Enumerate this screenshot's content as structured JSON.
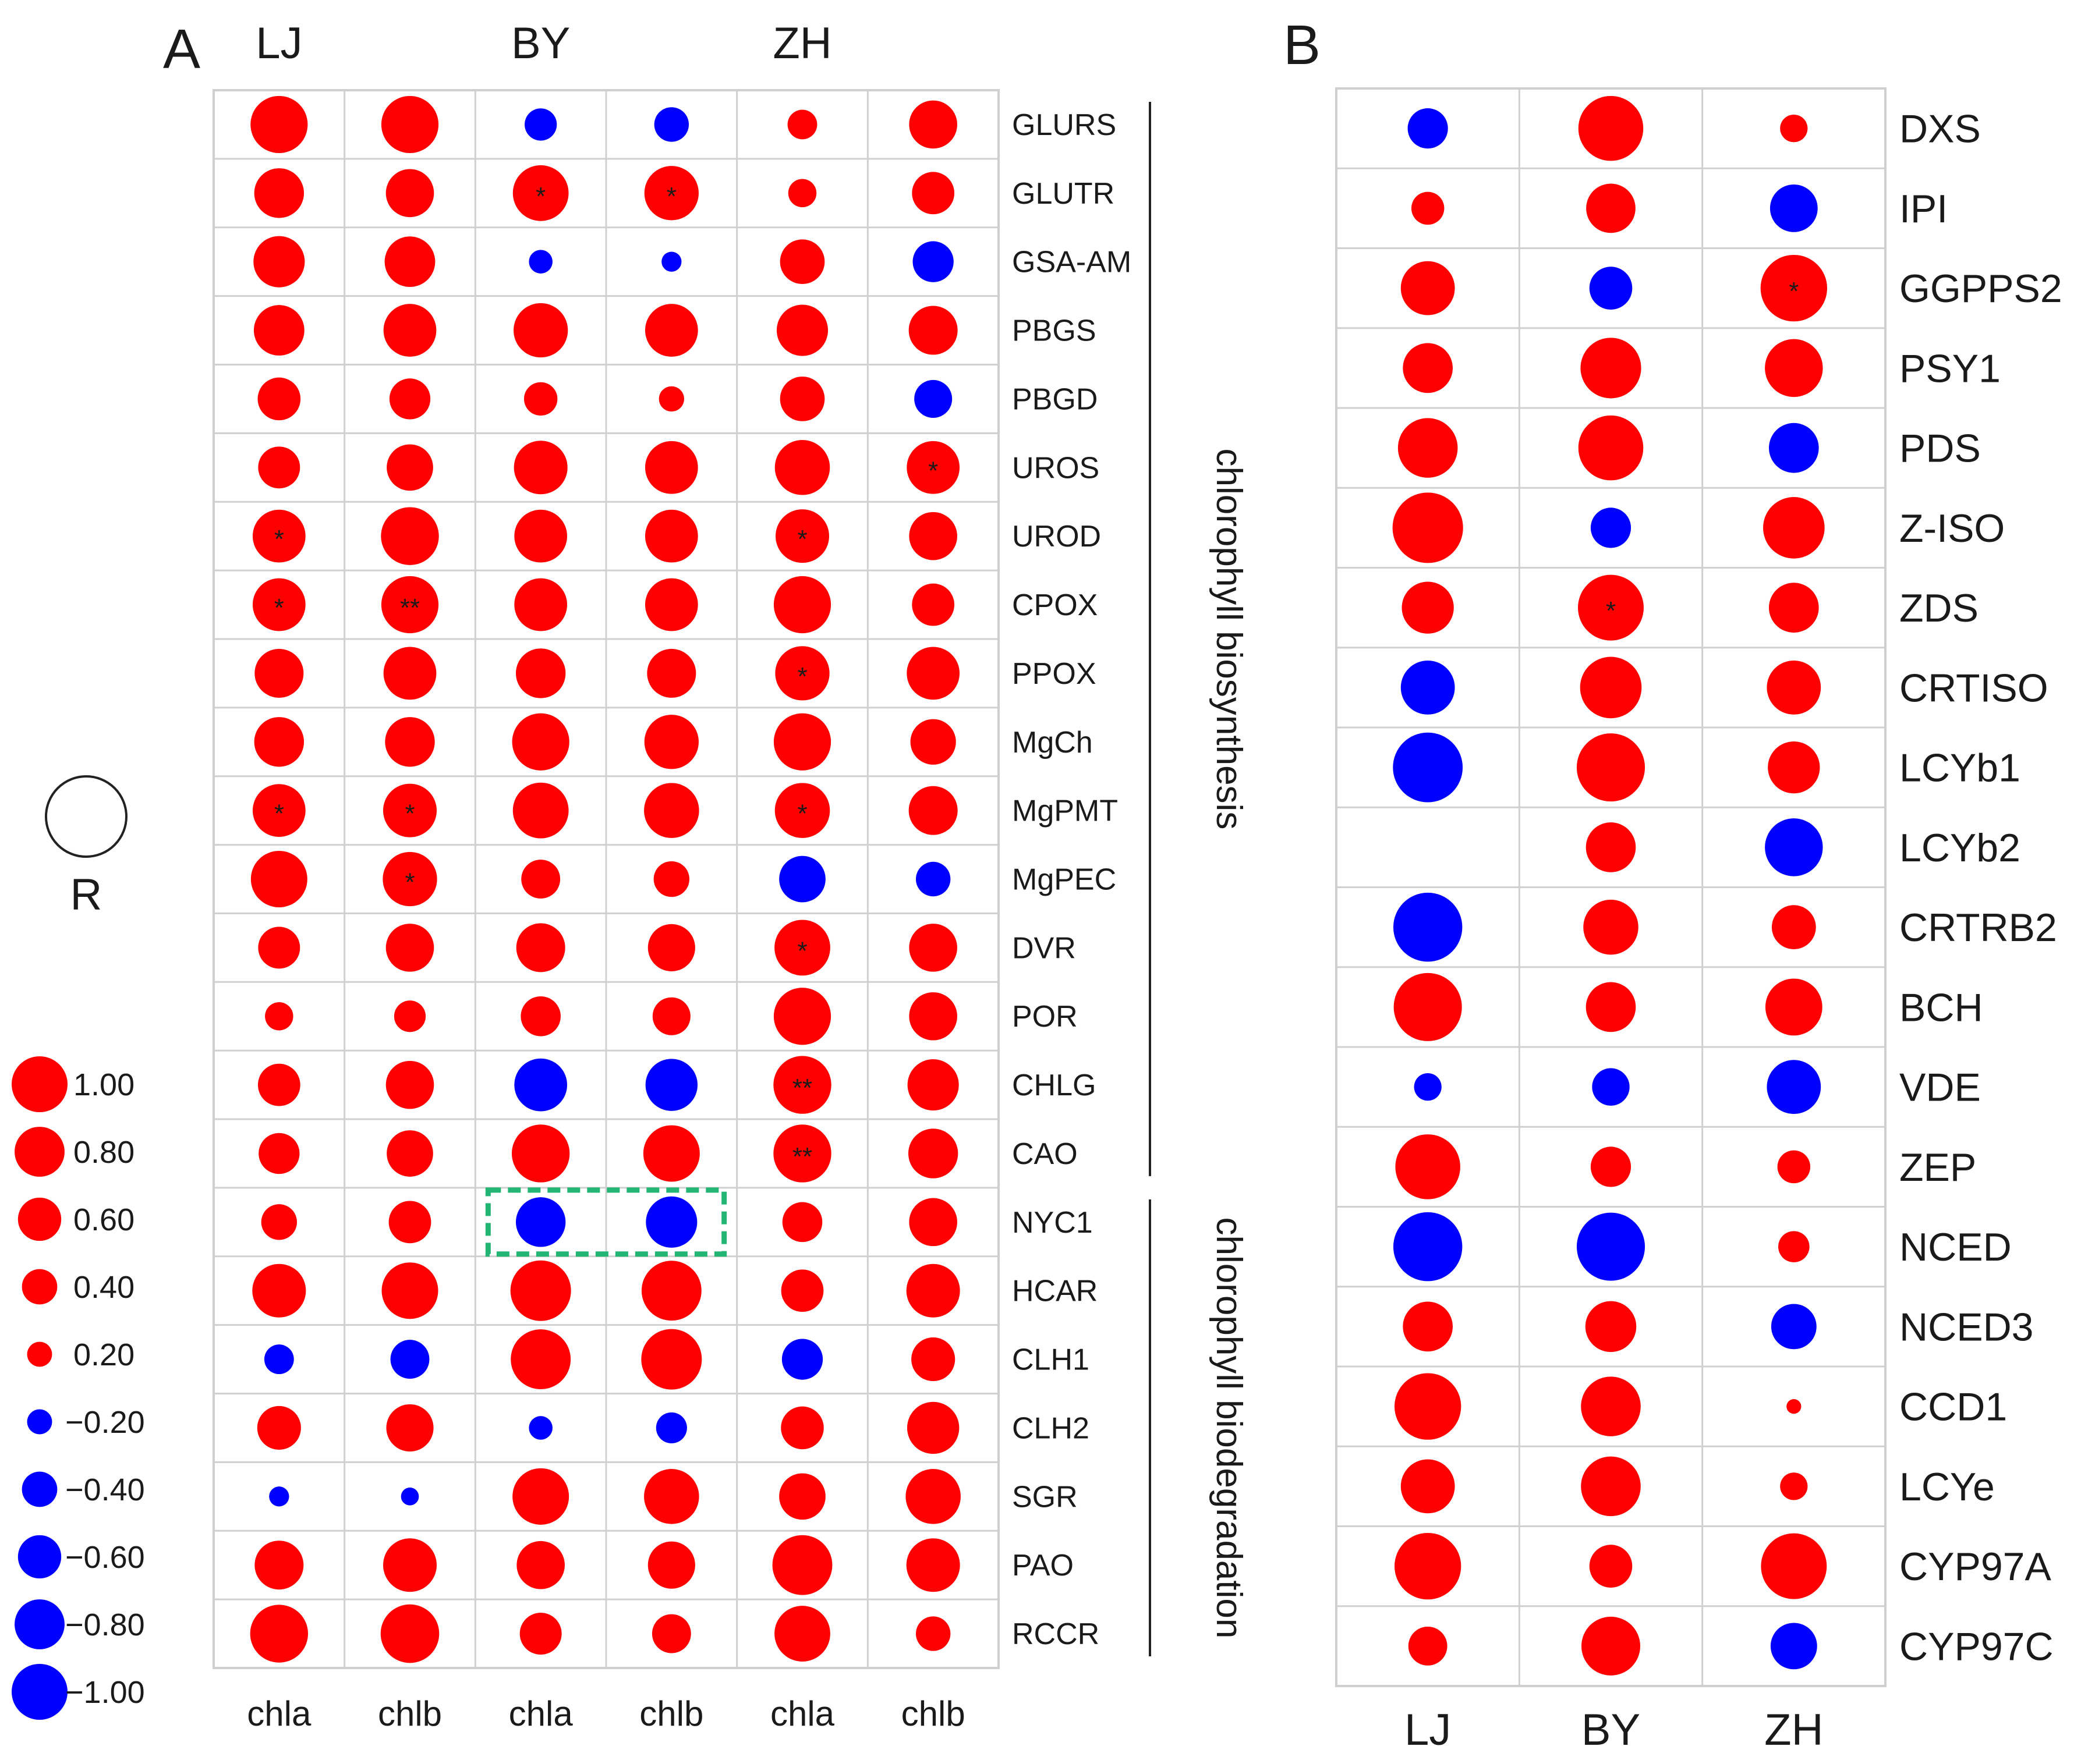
{
  "colors": {
    "positive": "#ff0000",
    "negative": "#0000ff",
    "highlight_box": "#22b573"
  },
  "chart_data": [
    {
      "panel": "A",
      "type": "bubble-matrix",
      "groups": [
        "LJ",
        "BY",
        "ZH"
      ],
      "columns": [
        "chla",
        "chlb",
        "chla",
        "chlb",
        "chla",
        "chlb"
      ],
      "column_groups": [
        "LJ",
        "LJ",
        "BY",
        "BY",
        "ZH",
        "ZH"
      ],
      "rows": [
        "GLURS",
        "GLUTR",
        "GSA-AM",
        "PBGS",
        "PBGD",
        "UROS",
        "UROD",
        "CPOX",
        "PPOX",
        "MgCh",
        "MgPMT",
        "MgPEC",
        "DVR",
        "POR",
        "CHLG",
        "CAO",
        "NYC1",
        "HCAR",
        "CLH1",
        "CLH2",
        "SGR",
        "PAO",
        "RCCR"
      ],
      "values": [
        [
          0.82,
          0.82,
          -0.26,
          -0.3,
          0.22,
          0.58
        ],
        [
          0.62,
          0.58,
          0.78,
          0.74,
          0.2,
          0.45
        ],
        [
          0.66,
          0.64,
          -0.14,
          -0.1,
          0.5,
          -0.42
        ],
        [
          0.64,
          0.7,
          0.74,
          0.7,
          0.66,
          0.6
        ],
        [
          0.46,
          0.42,
          0.28,
          0.16,
          0.5,
          -0.36
        ],
        [
          0.44,
          0.54,
          0.72,
          0.7,
          0.76,
          0.7
        ],
        [
          0.7,
          0.84,
          0.7,
          0.7,
          0.72,
          0.58
        ],
        [
          0.7,
          0.82,
          0.7,
          0.7,
          0.82,
          0.45
        ],
        [
          0.6,
          0.7,
          0.62,
          0.6,
          0.74,
          0.7
        ],
        [
          0.62,
          0.62,
          0.82,
          0.74,
          0.82,
          0.52
        ],
        [
          0.7,
          0.72,
          0.78,
          0.76,
          0.76,
          0.6
        ],
        [
          0.8,
          0.74,
          0.38,
          0.32,
          -0.54,
          -0.3
        ],
        [
          0.44,
          0.58,
          0.6,
          0.56,
          0.78,
          0.58
        ],
        [
          0.2,
          0.25,
          0.4,
          0.36,
          0.82,
          0.58
        ],
        [
          0.45,
          0.58,
          -0.7,
          -0.68,
          0.84,
          0.66
        ],
        [
          0.42,
          0.54,
          0.84,
          0.8,
          0.84,
          0.62
        ],
        [
          0.32,
          0.45,
          -0.62,
          -0.66,
          0.4,
          0.58
        ],
        [
          0.72,
          0.8,
          0.92,
          0.9,
          0.45,
          0.72
        ],
        [
          -0.22,
          -0.38,
          0.9,
          0.92,
          -0.42,
          0.48
        ],
        [
          0.48,
          0.56,
          -0.14,
          -0.24,
          0.46,
          0.68
        ],
        [
          -0.1,
          -0.08,
          0.8,
          0.76,
          0.54,
          0.76
        ],
        [
          0.6,
          0.72,
          0.58,
          0.56,
          0.9,
          0.72
        ],
        [
          0.84,
          0.86,
          0.44,
          0.38,
          0.78,
          0.3
        ]
      ],
      "significance": [
        [
          "",
          "",
          "",
          "",
          "",
          ""
        ],
        [
          "",
          "",
          "*",
          "*",
          "",
          ""
        ],
        [
          "",
          "",
          "",
          "",
          "",
          ""
        ],
        [
          "",
          "",
          "",
          "",
          "",
          ""
        ],
        [
          "",
          "",
          "",
          "",
          "",
          ""
        ],
        [
          "",
          "",
          "",
          "",
          "",
          "*"
        ],
        [
          "*",
          "",
          "",
          "",
          "*",
          ""
        ],
        [
          "*",
          "**",
          "",
          "",
          "",
          ""
        ],
        [
          "",
          "",
          "",
          "",
          "*",
          ""
        ],
        [
          "",
          "",
          "",
          "",
          "",
          ""
        ],
        [
          "*",
          "*",
          "",
          "",
          "*",
          ""
        ],
        [
          "",
          "*",
          "",
          "",
          "",
          ""
        ],
        [
          "",
          "",
          "",
          "",
          "*",
          ""
        ],
        [
          "",
          "",
          "",
          "",
          "",
          ""
        ],
        [
          "",
          "",
          "",
          "",
          "**",
          ""
        ],
        [
          "",
          "",
          "",
          "",
          "**",
          ""
        ],
        [
          "",
          "",
          "",
          "",
          "",
          ""
        ],
        [
          "",
          "",
          "",
          "",
          "",
          ""
        ],
        [
          "",
          "",
          "",
          "",
          "",
          ""
        ],
        [
          "",
          "",
          "",
          "",
          "",
          ""
        ],
        [
          "",
          "",
          "",
          "",
          "",
          ""
        ],
        [
          "",
          "",
          "",
          "",
          "",
          ""
        ],
        [
          "",
          "",
          "",
          "",
          "",
          ""
        ]
      ],
      "brackets": [
        {
          "label": "chlorophyll biosynthesis",
          "from_row": "GLURS",
          "to_row": "CAO"
        },
        {
          "label": "chlorophyll biodegradation",
          "from_row": "NYC1",
          "to_row": "RCCR"
        }
      ],
      "highlight": {
        "row": "NYC1",
        "columns": [
          2,
          3
        ],
        "style": "dashed"
      }
    },
    {
      "panel": "B",
      "type": "bubble-matrix",
      "columns": [
        "LJ",
        "BY",
        "ZH"
      ],
      "rows": [
        "DXS",
        "IPI",
        "GGPPS2",
        "PSY1",
        "PDS",
        "Z-ISO",
        "ZDS",
        "CRTISO",
        "LCYb1",
        "LCYb2",
        "CRTRB2",
        "BCH",
        "VDE",
        "ZEP",
        "NCED",
        "NCED3",
        "CCD1",
        "LCYe",
        "CYP97A",
        "CYP97C"
      ],
      "values": [
        [
          -0.3,
          0.78,
          0.14
        ],
        [
          0.2,
          0.45,
          -0.42
        ],
        [
          0.54,
          -0.34,
          0.82
        ],
        [
          0.46,
          0.68,
          0.62
        ],
        [
          0.66,
          0.78,
          -0.46
        ],
        [
          0.92,
          -0.3,
          0.7
        ],
        [
          0.5,
          0.8,
          0.46
        ],
        [
          -0.54,
          0.7,
          0.54
        ],
        [
          -0.9,
          0.86,
          0.5
        ],
        [
          0,
          0.46,
          -0.62
        ],
        [
          -0.88,
          0.56,
          0.36
        ],
        [
          0.86,
          0.46,
          0.6
        ],
        [
          -0.14,
          -0.26,
          -0.54
        ],
        [
          0.78,
          0.3,
          0.2
        ],
        [
          -0.88,
          -0.86,
          0.18
        ],
        [
          0.46,
          0.48,
          -0.38
        ],
        [
          0.82,
          0.66,
          0.04
        ],
        [
          0.54,
          0.66,
          0.14
        ],
        [
          0.82,
          0.34,
          0.8
        ],
        [
          0.28,
          0.64,
          -0.4
        ]
      ],
      "significance": [
        [
          "",
          "",
          ""
        ],
        [
          "",
          "",
          ""
        ],
        [
          "",
          "",
          "*"
        ],
        [
          "",
          "",
          ""
        ],
        [
          "",
          "",
          ""
        ],
        [
          "",
          "",
          ""
        ],
        [
          "",
          "*",
          ""
        ],
        [
          "",
          "",
          ""
        ],
        [
          "",
          "",
          ""
        ],
        [
          "",
          "",
          ""
        ],
        [
          "",
          "",
          ""
        ],
        [
          "",
          "",
          ""
        ],
        [
          "",
          "",
          ""
        ],
        [
          "",
          "",
          ""
        ],
        [
          "",
          "",
          ""
        ],
        [
          "",
          "",
          ""
        ],
        [
          "",
          "",
          ""
        ],
        [
          "",
          "",
          ""
        ],
        [
          "",
          "",
          ""
        ],
        [
          "",
          "",
          ""
        ]
      ]
    }
  ],
  "legend": {
    "symbol_label": "R",
    "items": [
      {
        "label": "1.00",
        "value": 1.0
      },
      {
        "label": "0.80",
        "value": 0.8
      },
      {
        "label": "0.60",
        "value": 0.6
      },
      {
        "label": "0.40",
        "value": 0.4
      },
      {
        "label": "0.20",
        "value": 0.2
      },
      {
        "label": "−0.20",
        "value": -0.2
      },
      {
        "label": "−0.40",
        "value": -0.4
      },
      {
        "label": "−0.60",
        "value": -0.6
      },
      {
        "label": "−0.80",
        "value": -0.8
      },
      {
        "label": "−1.00",
        "value": -1.0
      }
    ]
  }
}
